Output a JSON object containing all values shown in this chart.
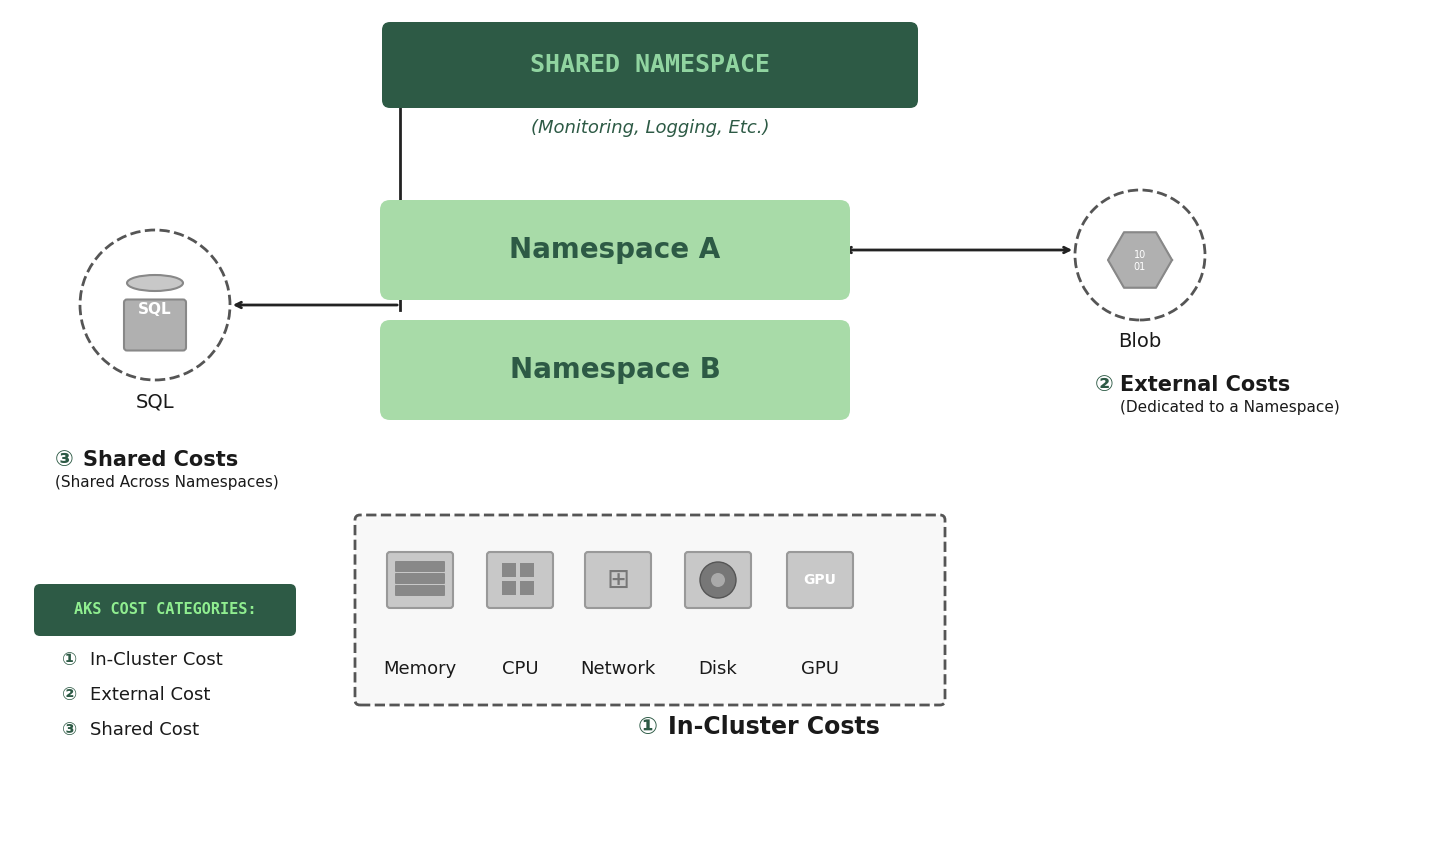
{
  "bg_color": "#ffffff",
  "dark_green": "#2d5a45",
  "medium_green": "#3a6b50",
  "light_green": "#90d4a0",
  "light_green_box": "#a8dba8",
  "namespace_green": "#90d470",
  "gray_icon": "#a0a0a0",
  "gray_light": "#b0b0b0",
  "dashed_circle_color": "#555555",
  "arrow_color": "#222222",
  "text_dark": "#1a1a1a",
  "title": "SHARED NAMESPACE",
  "subtitle": "(Monitoring, Logging, Etc.)",
  "ns_a": "Namespace A",
  "ns_b": "Namespace B",
  "blob_label": "Blob",
  "sql_label": "SQL",
  "ext_costs_label": "External Costs",
  "ext_costs_sub": "(Dedicated to a Namespace)",
  "shared_costs_label": "Shared Costs",
  "shared_costs_sub": "(Shared Across Namespaces)",
  "in_cluster_label": "In-Cluster Costs",
  "aks_label": "AKS COST CATEGORIES:",
  "legend_items": [
    "In-Cluster Cost",
    "External Cost",
    "Shared Cost"
  ],
  "resource_labels": [
    "Memory",
    "CPU",
    "Network",
    "Disk",
    "GPU"
  ]
}
